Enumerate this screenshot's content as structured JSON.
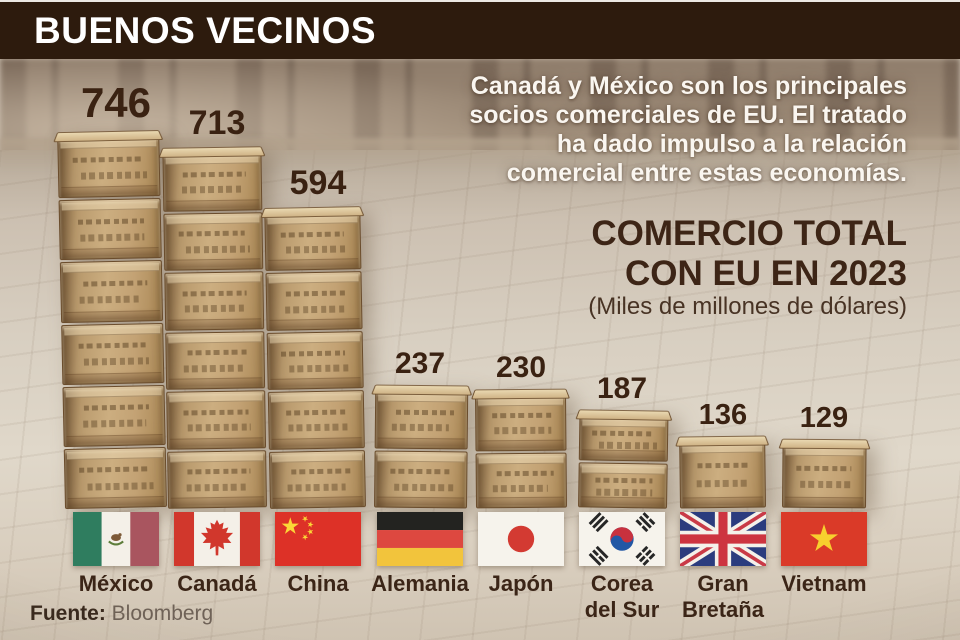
{
  "header": {
    "title": "BUENOS VECINOS"
  },
  "intro": {
    "lines": [
      "Canadá y México son los principales",
      "socios comerciales de EU. El tratado",
      "ha dado impulso a la relación",
      "comercial entre estas economías."
    ]
  },
  "subtitle": {
    "lines": [
      "COMERCIO TOTAL",
      "CON EU EN 2023"
    ]
  },
  "unit_note": "(Miles de millones de dólares)",
  "source": {
    "label": "Fuente:",
    "value": "Bloomberg"
  },
  "colors": {
    "header_bg": "#2d1b0d",
    "header_text": "#ffffff",
    "value_text": "#3a2212",
    "subtitle_text": "#3d2516",
    "crate_wood": "#c3a274"
  },
  "chart_data": {
    "type": "bar",
    "title": "COMERCIO TOTAL CON EU EN 2023",
    "ylabel": "Miles de millones de dólares",
    "categories": [
      "México",
      "Canadá",
      "China",
      "Alemania",
      "Japón",
      "Corea del Sur",
      "Gran Bretaña",
      "Vietnam"
    ],
    "category_lines": [
      [
        "México"
      ],
      [
        "Canadá"
      ],
      [
        "China"
      ],
      [
        "Alemania"
      ],
      [
        "Japón"
      ],
      [
        "Corea",
        "del Sur"
      ],
      [
        "Gran",
        "Bretaña"
      ],
      [
        "Vietnam"
      ]
    ],
    "values": [
      746,
      713,
      594,
      237,
      230,
      187,
      136,
      129
    ],
    "flags": [
      "mexico-flag-icon",
      "canada-flag-icon",
      "china-flag-icon",
      "germany-flag-icon",
      "japan-flag-icon",
      "south-korea-flag-icon",
      "uk-flag-icon",
      "vietnam-flag-icon"
    ],
    "ylim": [
      0,
      800
    ],
    "grid": false,
    "legend": "none"
  }
}
